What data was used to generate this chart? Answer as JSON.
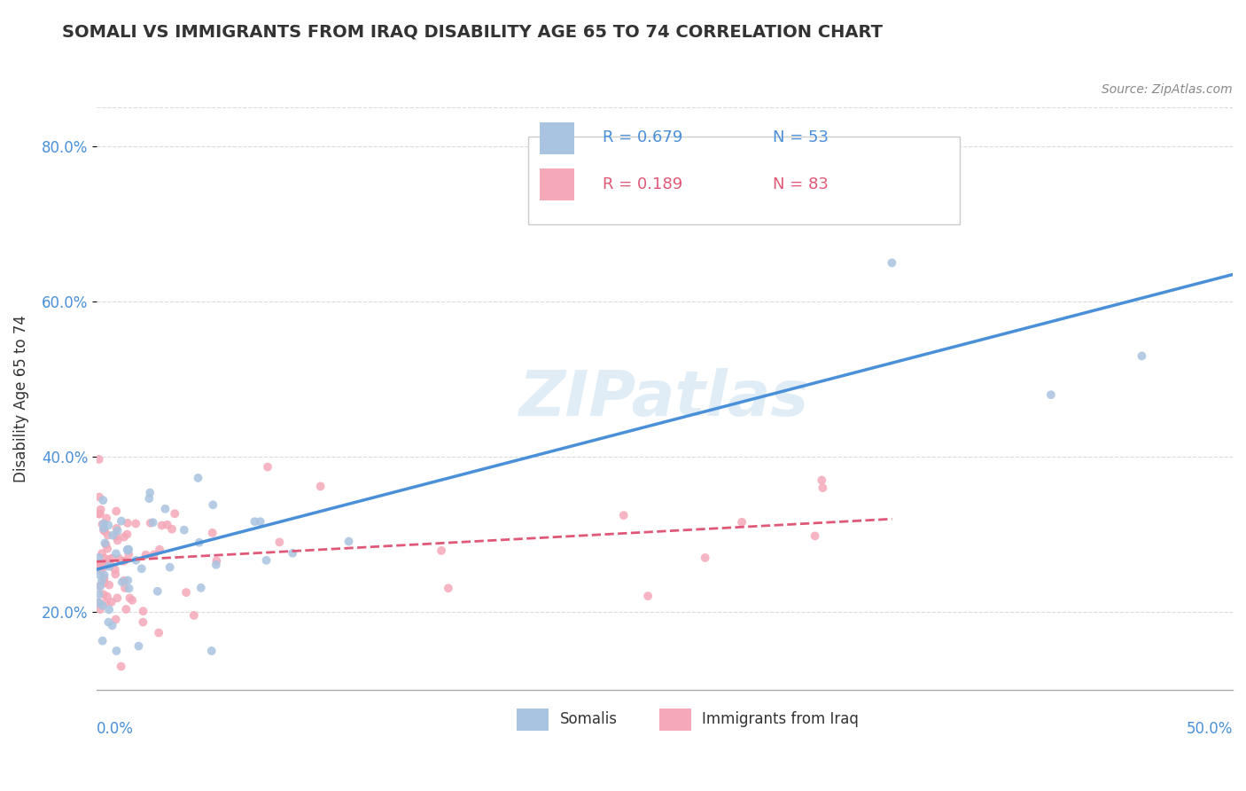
{
  "title": "SOMALI VS IMMIGRANTS FROM IRAQ DISABILITY AGE 65 TO 74 CORRELATION CHART",
  "source": "Source: ZipAtlas.com",
  "ylabel": "Disability Age 65 to 74",
  "xmin": 0.0,
  "xmax": 0.5,
  "ymin": 0.1,
  "ymax": 0.85,
  "yticks": [
    0.2,
    0.4,
    0.6,
    0.8
  ],
  "ytick_labels": [
    "20.0%",
    "40.0%",
    "60.0%",
    "80.0%"
  ],
  "series1_name": "Somalis",
  "series1_R": 0.679,
  "series1_N": 53,
  "series1_color": "#a8c4e0",
  "series1_line_color": "#4a90d9",
  "series2_name": "Immigrants from Iraq",
  "series2_R": 0.189,
  "series2_N": 83,
  "series2_color": "#f4a8b8",
  "series2_line_color": "#e05878",
  "watermark": "ZIPatlas",
  "background_color": "#ffffff",
  "grid_color": "#cccccc",
  "trend1_x": [
    0.0,
    0.5
  ],
  "trend1_y": [
    0.255,
    0.635
  ],
  "trend2_x": [
    0.0,
    0.35
  ],
  "trend2_y": [
    0.265,
    0.32
  ]
}
